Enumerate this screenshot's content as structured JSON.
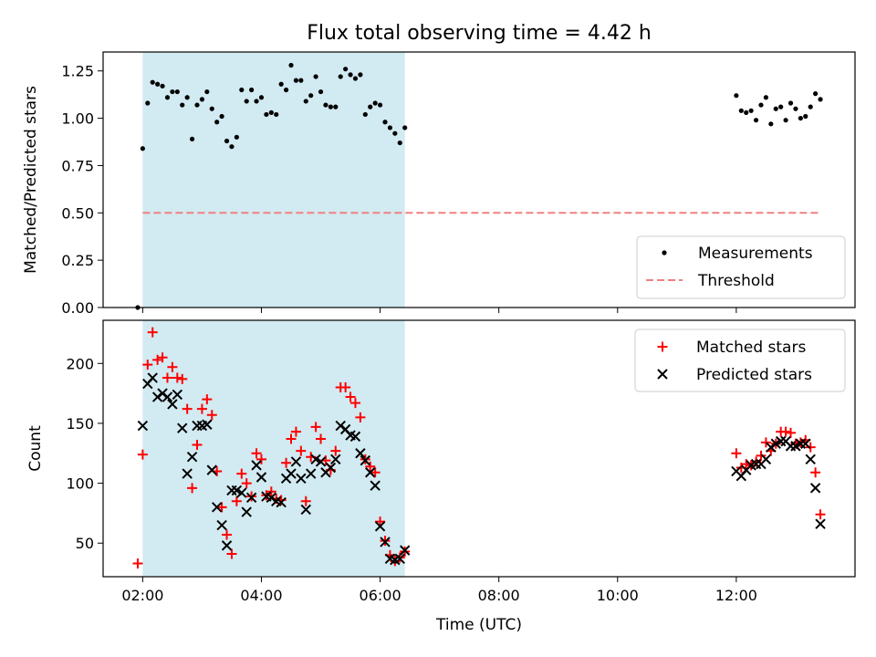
{
  "title": "Flux total observing time = 4.42 h",
  "xlabel": "Time (UTC)",
  "colors": {
    "measurement": "#000000",
    "threshold": "#f08080",
    "matched": "#ff0000",
    "predicted": "#000000",
    "highlight": "#add8e6"
  },
  "chart_data": [
    {
      "type": "scatter",
      "ylabel": "Matched/Predicted stars",
      "ylim": [
        0,
        1.35
      ],
      "xlim": [
        "01:20",
        "14:00"
      ],
      "highlight_span": [
        "02:00",
        "06:25"
      ],
      "yticks": [
        "0.00",
        "0.25",
        "0.50",
        "0.75",
        "1.00",
        "1.25"
      ],
      "xticks": [],
      "legend": {
        "position": "lower-right",
        "entries": [
          "Measurements",
          "Threshold"
        ]
      },
      "threshold": {
        "name": "Threshold",
        "y": 0.5,
        "x_range": [
          "02:00",
          "13:25"
        ]
      },
      "series": [
        {
          "name": "Measurements",
          "x": [
            "01:55",
            "02:00",
            "02:05",
            "02:10",
            "02:15",
            "02:20",
            "02:25",
            "02:30",
            "02:35",
            "02:40",
            "02:45",
            "02:50",
            "02:55",
            "03:00",
            "03:05",
            "03:10",
            "03:15",
            "03:20",
            "03:25",
            "03:30",
            "03:35",
            "03:40",
            "03:45",
            "03:50",
            "03:55",
            "04:00",
            "04:05",
            "04:10",
            "04:15",
            "04:20",
            "04:25",
            "04:30",
            "04:35",
            "04:40",
            "04:45",
            "04:50",
            "04:55",
            "05:00",
            "05:05",
            "05:10",
            "05:15",
            "05:20",
            "05:25",
            "05:30",
            "05:35",
            "05:40",
            "05:45",
            "05:50",
            "05:55",
            "06:00",
            "06:05",
            "06:10",
            "06:15",
            "06:20",
            "06:25",
            "12:00",
            "12:05",
            "12:10",
            "12:15",
            "12:20",
            "12:25",
            "12:30",
            "12:35",
            "12:40",
            "12:45",
            "12:50",
            "12:55",
            "13:00",
            "13:05",
            "13:10",
            "13:15",
            "13:20",
            "13:25"
          ],
          "y": [
            0.0,
            0.84,
            1.08,
            1.19,
            1.18,
            1.17,
            1.11,
            1.14,
            1.14,
            1.07,
            1.11,
            0.89,
            1.07,
            1.1,
            1.14,
            1.05,
            0.98,
            1.01,
            0.88,
            0.85,
            0.9,
            1.15,
            1.09,
            1.15,
            1.09,
            1.11,
            1.02,
            1.03,
            1.02,
            1.18,
            1.15,
            1.28,
            1.2,
            1.2,
            1.09,
            1.12,
            1.22,
            1.14,
            1.07,
            1.06,
            1.06,
            1.22,
            1.26,
            1.23,
            1.21,
            1.23,
            1.02,
            1.06,
            1.08,
            1.07,
            0.98,
            0.95,
            0.92,
            0.87,
            0.95,
            1.12,
            1.04,
            1.03,
            1.04,
            0.99,
            1.07,
            1.11,
            0.97,
            1.05,
            1.06,
            0.99,
            1.08,
            1.05,
            1.0,
            1.01,
            1.06,
            1.13,
            1.1
          ]
        }
      ]
    },
    {
      "type": "scatter",
      "ylabel": "Count",
      "ylim": [
        22,
        236
      ],
      "xlim": [
        "01:20",
        "14:00"
      ],
      "highlight_span": [
        "02:00",
        "06:25"
      ],
      "yticks": [
        "50",
        "100",
        "150",
        "200"
      ],
      "xticks": [
        "02:00",
        "04:00",
        "06:00",
        "08:00",
        "10:00",
        "12:00"
      ],
      "legend": {
        "position": "top-right",
        "entries": [
          "Matched stars",
          "Predicted stars"
        ]
      },
      "x": [
        "01:55",
        "02:00",
        "02:05",
        "02:10",
        "02:15",
        "02:20",
        "02:25",
        "02:30",
        "02:35",
        "02:40",
        "02:45",
        "02:50",
        "02:55",
        "03:00",
        "03:05",
        "03:10",
        "03:15",
        "03:20",
        "03:25",
        "03:30",
        "03:35",
        "03:40",
        "03:45",
        "03:50",
        "03:55",
        "04:00",
        "04:05",
        "04:10",
        "04:15",
        "04:20",
        "04:25",
        "04:30",
        "04:35",
        "04:40",
        "04:45",
        "04:50",
        "04:55",
        "05:00",
        "05:05",
        "05:10",
        "05:15",
        "05:20",
        "05:25",
        "05:30",
        "05:35",
        "05:40",
        "05:45",
        "05:50",
        "05:55",
        "06:00",
        "06:05",
        "06:10",
        "06:15",
        "06:20",
        "06:25",
        "12:00",
        "12:05",
        "12:10",
        "12:15",
        "12:20",
        "12:25",
        "12:30",
        "12:35",
        "12:40",
        "12:45",
        "12:50",
        "12:55",
        "13:00",
        "13:05",
        "13:10",
        "13:15",
        "13:20",
        "13:25"
      ],
      "series": [
        {
          "name": "Matched stars",
          "marker": "plus",
          "values": [
            33,
            124,
            199,
            226,
            203,
            205,
            188,
            197,
            188,
            187,
            162,
            96,
            132,
            162,
            170,
            157,
            110,
            80,
            57,
            41,
            85,
            108,
            100,
            89,
            125,
            120,
            90,
            93,
            87,
            86,
            117,
            137,
            143,
            127,
            85,
            122,
            147,
            137,
            119,
            111,
            127,
            180,
            180,
            172,
            167,
            155,
            120,
            114,
            109,
            68,
            52,
            40,
            35,
            38,
            43,
            125,
            113,
            116,
            115,
            118,
            123,
            134,
            127,
            133,
            143,
            143,
            142,
            133,
            134,
            136,
            130,
            109,
            74
          ]
        },
        {
          "name": "Predicted stars",
          "marker": "x",
          "values": [
            null,
            148,
            183,
            188,
            172,
            175,
            172,
            166,
            174,
            146,
            108,
            122,
            148,
            148,
            149,
            111,
            80,
            65,
            48,
            94,
            94,
            92,
            76,
            88,
            115,
            105,
            89,
            88,
            85,
            84,
            104,
            108,
            118,
            104,
            78,
            108,
            120,
            118,
            109,
            113,
            120,
            148,
            145,
            140,
            139,
            125,
            119,
            109,
            98,
            64,
            51,
            37,
            36,
            37,
            44,
            110,
            106,
            111,
            115,
            116,
            116,
            120,
            130,
            133,
            135,
            135,
            131,
            131,
            133,
            133,
            120,
            96,
            66
          ]
        }
      ]
    }
  ]
}
